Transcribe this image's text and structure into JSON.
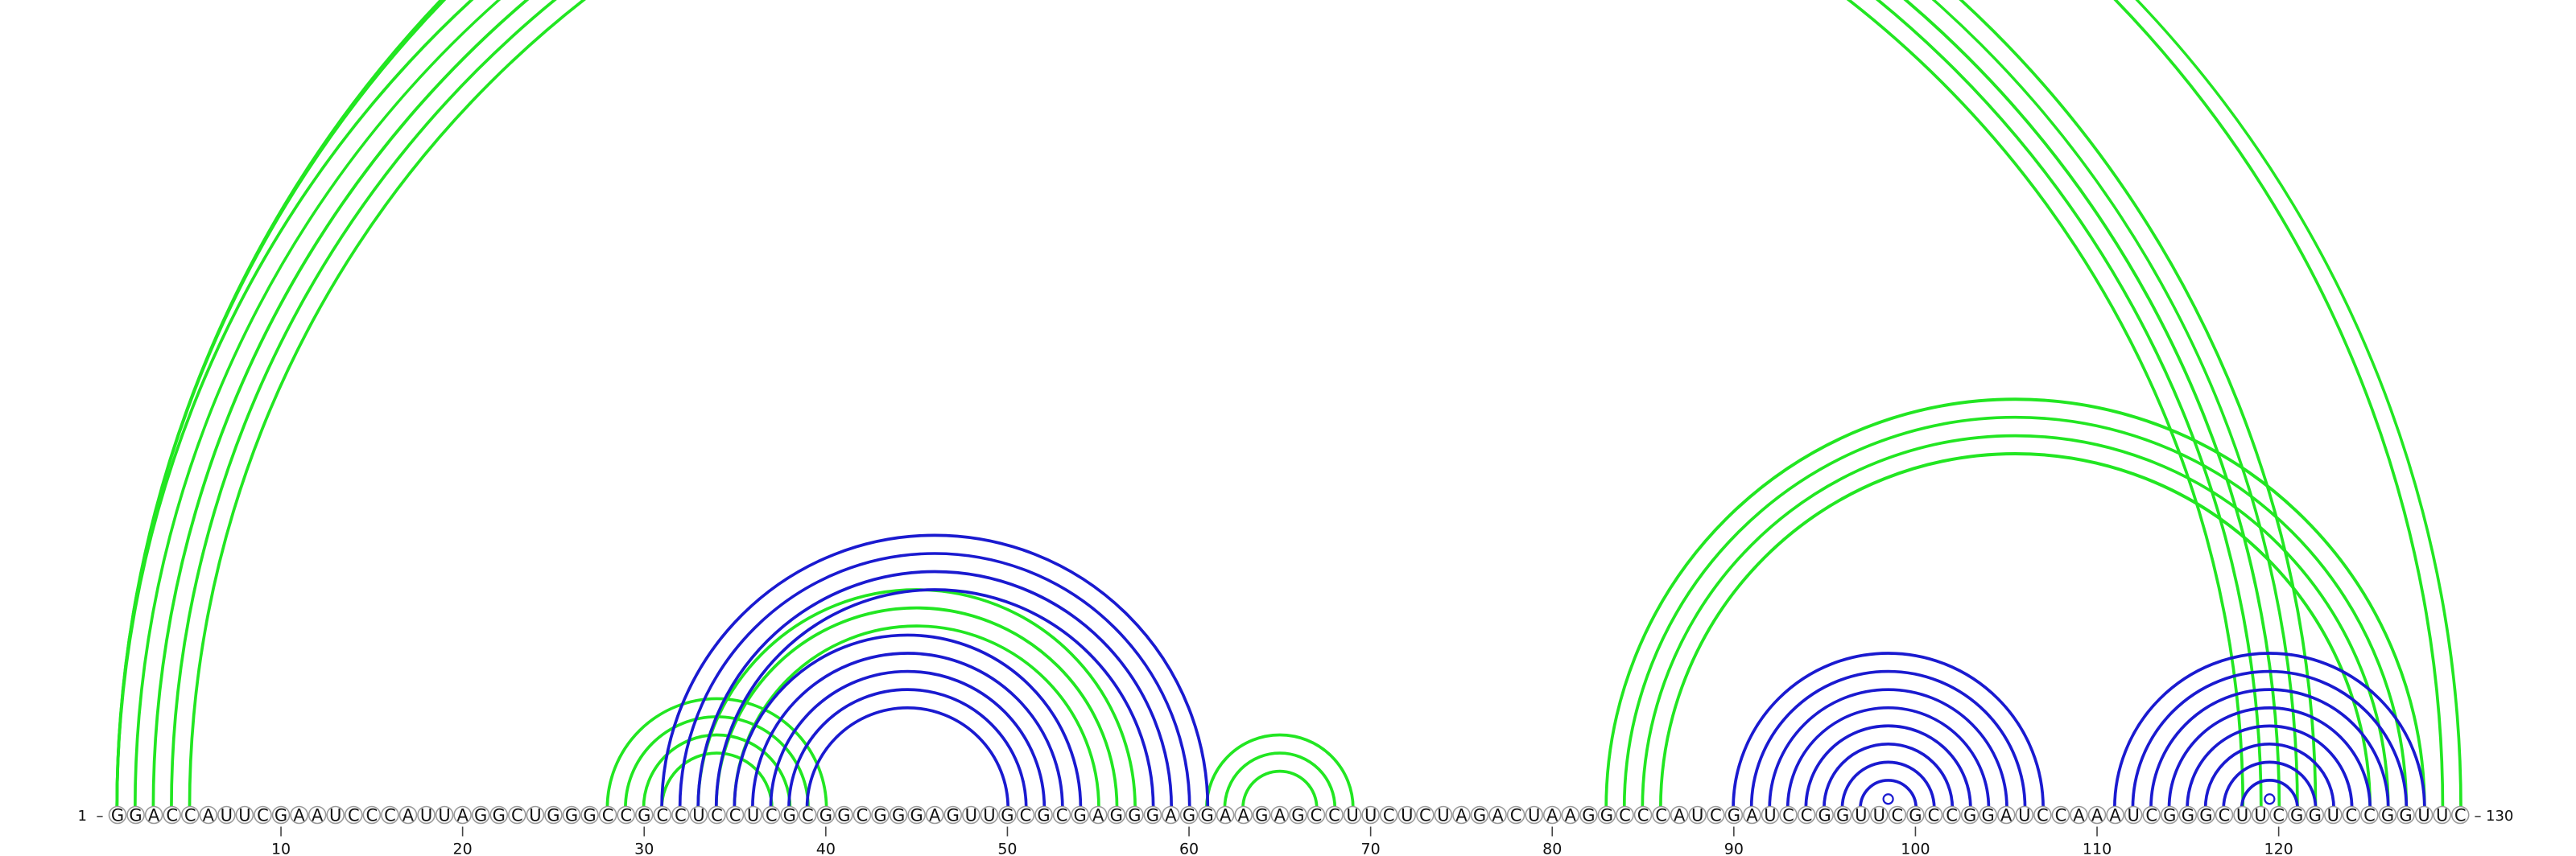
{
  "sequence": "GGACCAUUCGAAUCCCAUUAGGCUGGGCCGCCUCCUCGCGGCGGGAGUUGCGCGAGGGAGGAAGAGCCUUCUCUAGACUAAGGCCCAUCGAUCCGGUUCGCCGGAUCCAAAUCGGGCUUCGGUCCGGUUC",
  "labels": {
    "start": "1",
    "end": "130"
  },
  "ticks": [
    "10",
    "20",
    "30",
    "40",
    "50",
    "60",
    "70",
    "80",
    "90",
    "100",
    "110",
    "120"
  ],
  "colors": {
    "green": "#22e622",
    "blue": "#1a1ad0"
  },
  "arcs": {
    "green": [
      [
        1,
        122
      ],
      [
        2,
        121
      ],
      [
        3,
        120
      ],
      [
        4,
        119
      ],
      [
        5,
        118
      ],
      [
        1,
        130
      ],
      [
        1,
        129
      ],
      [
        28,
        40
      ],
      [
        29,
        39
      ],
      [
        30,
        38
      ],
      [
        31,
        37
      ],
      [
        33,
        57
      ],
      [
        34,
        56
      ],
      [
        35,
        55
      ],
      [
        61,
        69
      ],
      [
        62,
        68
      ],
      [
        63,
        67
      ],
      [
        83,
        128
      ],
      [
        84,
        127
      ],
      [
        85,
        126
      ],
      [
        86,
        125
      ]
    ],
    "blue": [
      [
        31,
        61
      ],
      [
        32,
        60
      ],
      [
        33,
        59
      ],
      [
        34,
        58
      ],
      [
        35,
        54
      ],
      [
        36,
        53
      ],
      [
        37,
        52
      ],
      [
        38,
        51
      ],
      [
        39,
        50
      ],
      [
        90,
        107
      ],
      [
        91,
        106
      ],
      [
        92,
        105
      ],
      [
        93,
        104
      ],
      [
        94,
        103
      ],
      [
        95,
        102
      ],
      [
        96,
        101
      ],
      [
        97,
        100
      ],
      [
        111,
        128
      ],
      [
        112,
        127
      ],
      [
        113,
        126
      ],
      [
        114,
        125
      ],
      [
        115,
        124
      ],
      [
        116,
        123
      ],
      [
        117,
        122
      ],
      [
        118,
        121
      ]
    ]
  },
  "markers": {
    "green": [
      [
        1,
        130
      ]
    ],
    "blue": [
      [
        98,
        99
      ],
      [
        120,
        119
      ]
    ]
  }
}
